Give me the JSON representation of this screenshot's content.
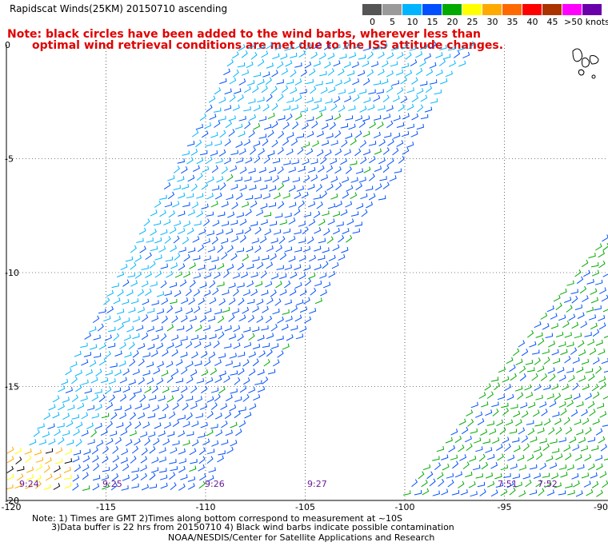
{
  "title": "Rapidscat Winds(25KM) 20150710 ascending",
  "note": {
    "line1": "Note: black circles have been added to the wind barbs, wherever less than",
    "line2": "optimal wind retrieval conditions are met due to the ISS attitude changes."
  },
  "scale": {
    "labels": [
      "0",
      "5",
      "10",
      "15",
      "20",
      "25",
      "30",
      "35",
      "40",
      "45",
      ">50 knots"
    ],
    "colors": [
      "#555555",
      "#9a9a9a",
      "#00b4ff",
      "#0050ff",
      "#00aa00",
      "#ffff00",
      "#ffaa00",
      "#ff6a00",
      "#ff0000",
      "#aa3300",
      "#ff00ff",
      "#6a00aa"
    ]
  },
  "axes": {
    "lat_labels": [
      "0",
      "-5",
      "-10",
      "-15",
      "-20"
    ],
    "lon_labels": [
      "-120",
      "-115",
      "-110",
      "-105",
      "-100",
      "-95",
      "-90"
    ]
  },
  "times": [
    "9:24",
    "9:25",
    "9:26",
    "9:27",
    "7:51",
    "7:52"
  ],
  "footer": {
    "line1": "Note: 1) Times are GMT 2)Times along bottom correspond to measurement at ~10S",
    "line2": "3)Data buffer is 22 hrs from 20150710 4) Black wind barbs indicate possible contamination",
    "line3": "NOAA/NESDIS/Center for Satellite Applications and Research"
  },
  "swaths": [
    {
      "name": "swath-west",
      "dominant_colors": [
        "#0050ff",
        "#00b4ff",
        "#00aa00",
        "#ffaa00",
        "#000000"
      ]
    },
    {
      "name": "swath-east",
      "dominant_colors": [
        "#00aa00",
        "#0050ff"
      ]
    }
  ]
}
